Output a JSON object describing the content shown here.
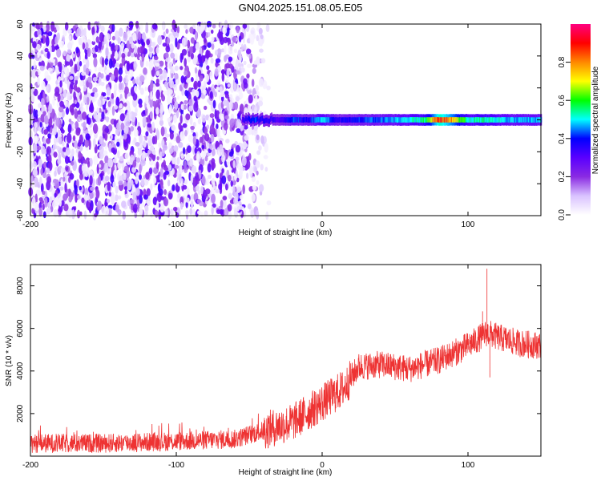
{
  "title": "GN04.2025.151.08.05.E05",
  "chart_data": [
    {
      "type": "heatmap",
      "xlabel": "Height of straight line (km)",
      "ylabel": "Frequency (Hz)",
      "xlim": [
        -200,
        150
      ],
      "ylim": [
        -60,
        60
      ],
      "x_ticks": [
        -200,
        -100,
        0,
        100
      ],
      "y_ticks": [
        -60,
        -40,
        -20,
        0,
        20,
        40,
        60
      ],
      "colorbar": {
        "label": "Normalized spectral amplitude",
        "range": [
          0,
          1
        ],
        "ticks": [
          0.0,
          0.2,
          0.4,
          0.6,
          0.8
        ],
        "colors": [
          "#ffffff",
          "#d9c2ff",
          "#8a2be2",
          "#5a00ff",
          "#0000ff",
          "#00ffff",
          "#00ff00",
          "#ffff00",
          "#ff8800",
          "#ff0000",
          "#ff0080"
        ]
      },
      "noise_region_x": [
        -200,
        -35
      ],
      "signal_band": {
        "x_start": -55,
        "x_end": 150,
        "freq_half_width_hz": 3,
        "amplitude_profile": [
          [
            -55,
            0.35
          ],
          [
            -48,
            0.45
          ],
          [
            -40,
            0.4
          ],
          [
            -30,
            0.35
          ],
          [
            -20,
            0.45
          ],
          [
            -10,
            0.4
          ],
          [
            0,
            0.55
          ],
          [
            10,
            0.4
          ],
          [
            30,
            0.45
          ],
          [
            50,
            0.5
          ],
          [
            70,
            0.6
          ],
          [
            80,
            0.95
          ],
          [
            90,
            0.8
          ],
          [
            100,
            0.55
          ],
          [
            110,
            0.6
          ],
          [
            130,
            0.5
          ],
          [
            150,
            0.5
          ]
        ]
      }
    },
    {
      "type": "line",
      "xlabel": "Height of straight line (km)",
      "ylabel": "SNR (10 * v/v)",
      "xlim": [
        -200,
        150
      ],
      "ylim": [
        0,
        9000
      ],
      "x_ticks": [
        -200,
        -100,
        0,
        100
      ],
      "y_ticks": [
        2000,
        4000,
        6000,
        8000
      ],
      "color": "#ee3333",
      "series": [
        {
          "trend": [
            [
              -200,
              600
            ],
            [
              -150,
              600
            ],
            [
              -100,
              700
            ],
            [
              -60,
              800
            ],
            [
              -40,
              1200
            ],
            [
              -20,
              1600
            ],
            [
              0,
              2500
            ],
            [
              15,
              3200
            ],
            [
              25,
              4200
            ],
            [
              40,
              4300
            ],
            [
              60,
              4100
            ],
            [
              80,
              4500
            ],
            [
              95,
              5000
            ],
            [
              105,
              5400
            ],
            [
              113,
              5800
            ],
            [
              120,
              5600
            ],
            [
              135,
              5300
            ],
            [
              150,
              5200
            ]
          ],
          "spikes": [
            [
              113,
              8800
            ],
            [
              115,
              3700
            ],
            [
              110,
              6800
            ]
          ]
        }
      ]
    }
  ]
}
